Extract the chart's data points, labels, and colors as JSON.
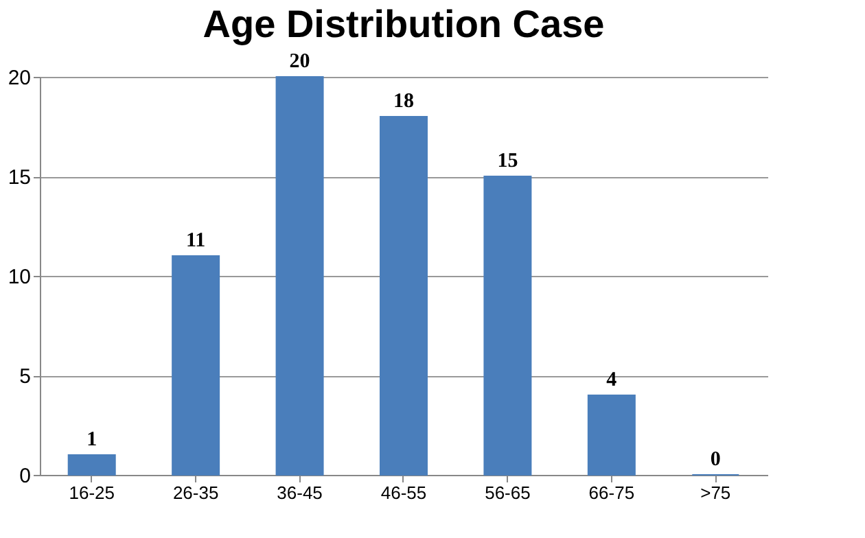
{
  "chart_data": {
    "type": "bar",
    "title": "Age Distribution Case",
    "categories": [
      "16-25",
      "26-35",
      "36-45",
      "46-55",
      "56-65",
      "66-75",
      ">75"
    ],
    "values": [
      1,
      11,
      20,
      18,
      15,
      4,
      0
    ],
    "color": "#4a7ebb",
    "ylim": [
      0,
      20
    ],
    "yticks": [
      0,
      5,
      10,
      15,
      20
    ],
    "grid": "y",
    "data_labels": true
  }
}
